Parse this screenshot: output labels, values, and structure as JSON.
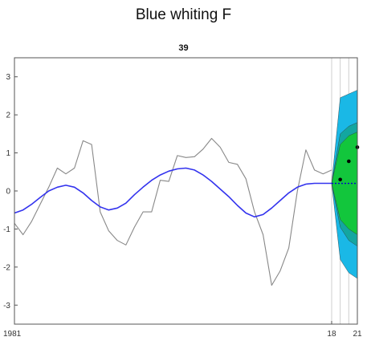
{
  "title": "Blue whiting F",
  "chart_data": {
    "type": "line",
    "subtitle": "39",
    "ylim": [
      -3.5,
      3.5
    ],
    "yticks": [
      -3,
      -2,
      -1,
      0,
      1,
      2,
      3
    ],
    "xlim": [
      1981,
      2021
    ],
    "xtick_labels": [
      {
        "x": 1981,
        "label": "1981"
      },
      {
        "x": 2018,
        "label": "18"
      },
      {
        "x": 2021,
        "label": "21"
      }
    ],
    "vlines": [
      2018,
      2019,
      2020
    ],
    "grid": false,
    "colors": {
      "observed": "#888888",
      "trend": "#3333ee",
      "forecast_line": "#0000cc",
      "band_outer": "#1ab8e6",
      "band_mid": "#13a6a0",
      "band_inner": "#12c63c",
      "points": "#000000",
      "frame": "#555555",
      "vline": "#cfcfcf"
    },
    "series": [
      {
        "key": "observed",
        "x": [
          1981,
          1982,
          1983,
          1984,
          1985,
          1986,
          1987,
          1988,
          1989,
          1990,
          1991,
          1992,
          1993,
          1994,
          1995,
          1996,
          1997,
          1998,
          1999,
          2000,
          2001,
          2002,
          2003,
          2004,
          2005,
          2006,
          2007,
          2008,
          2009,
          2010,
          2011,
          2012,
          2013,
          2014,
          2015,
          2016,
          2017,
          2018
        ],
        "values": [
          -0.85,
          -1.15,
          -0.8,
          -0.35,
          0.1,
          0.6,
          0.45,
          0.6,
          1.32,
          1.22,
          -0.55,
          -1.05,
          -1.3,
          -1.42,
          -0.95,
          -0.55,
          -0.55,
          0.28,
          0.25,
          0.93,
          0.88,
          0.9,
          1.1,
          1.38,
          1.15,
          0.75,
          0.7,
          0.32,
          -0.55,
          -1.15,
          -2.48,
          -2.1,
          -1.5,
          0.0,
          1.08,
          0.55,
          0.45,
          0.55
        ]
      },
      {
        "key": "trend",
        "x": [
          1981,
          1982,
          1983,
          1984,
          1985,
          1986,
          1987,
          1988,
          1989,
          1990,
          1991,
          1992,
          1993,
          1994,
          1995,
          1996,
          1997,
          1998,
          1999,
          2000,
          2001,
          2002,
          2003,
          2004,
          2005,
          2006,
          2007,
          2008,
          2009,
          2010,
          2011,
          2012,
          2013,
          2014,
          2015,
          2016,
          2017,
          2018
        ],
        "values": [
          -0.58,
          -0.5,
          -0.35,
          -0.17,
          0.0,
          0.1,
          0.15,
          0.1,
          -0.05,
          -0.25,
          -0.42,
          -0.5,
          -0.45,
          -0.32,
          -0.1,
          0.1,
          0.28,
          0.42,
          0.52,
          0.58,
          0.6,
          0.55,
          0.42,
          0.25,
          0.05,
          -0.15,
          -0.38,
          -0.58,
          -0.68,
          -0.62,
          -0.45,
          -0.25,
          -0.05,
          0.1,
          0.18,
          0.2,
          0.2,
          0.2
        ]
      }
    ],
    "forecast": {
      "x": [
        2018,
        2019,
        2020,
        2021
      ],
      "center": [
        0.2,
        0.2,
        0.2,
        0.2
      ],
      "outer_upper": [
        0.2,
        2.45,
        2.55,
        2.65
      ],
      "outer_lower": [
        0.2,
        -1.8,
        -2.15,
        -2.3
      ],
      "mid_upper": [
        0.2,
        1.5,
        1.7,
        1.8
      ],
      "mid_lower": [
        0.2,
        -0.95,
        -1.3,
        -1.45
      ],
      "inner_upper": [
        0.2,
        1.22,
        1.45,
        1.55
      ],
      "inner_lower": [
        0.2,
        -0.75,
        -1.0,
        -1.15
      ],
      "points": [
        {
          "x": 2019,
          "y": 0.3
        },
        {
          "x": 2020,
          "y": 0.78
        },
        {
          "x": 2021,
          "y": 1.15
        }
      ]
    }
  }
}
